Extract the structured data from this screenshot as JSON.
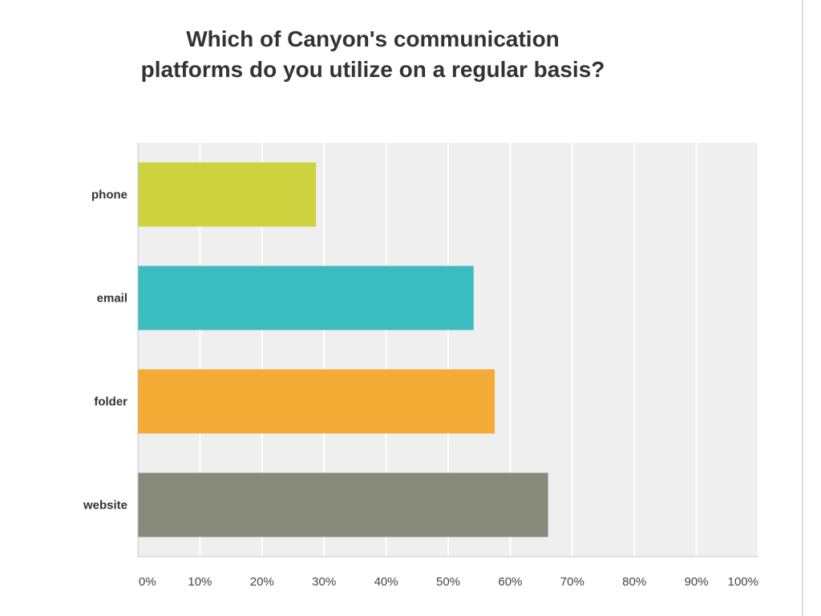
{
  "chart_data": {
    "type": "bar",
    "orientation": "horizontal",
    "title": "Which of Canyon's communication platforms do you utilize on a regular basis?",
    "title_lines": [
      "Which of Canyon's communication",
      "platforms do you utilize on a regular basis?"
    ],
    "categories": [
      "phone",
      "email",
      "folder",
      "website"
    ],
    "values": [
      28.7,
      54.1,
      57.5,
      66.1
    ],
    "colors": [
      "#cdd23e",
      "#3bbdc0",
      "#f3ab36",
      "#878a7a"
    ],
    "xlim": [
      0,
      100
    ],
    "xticks": [
      0,
      10,
      20,
      30,
      40,
      50,
      60,
      70,
      80,
      90,
      100
    ],
    "xtick_labels": [
      "0%",
      "10%",
      "20%",
      "30%",
      "40%",
      "50%",
      "60%",
      "70%",
      "80%",
      "90%",
      "100%"
    ],
    "grid": true,
    "xlabel": "",
    "ylabel": ""
  }
}
